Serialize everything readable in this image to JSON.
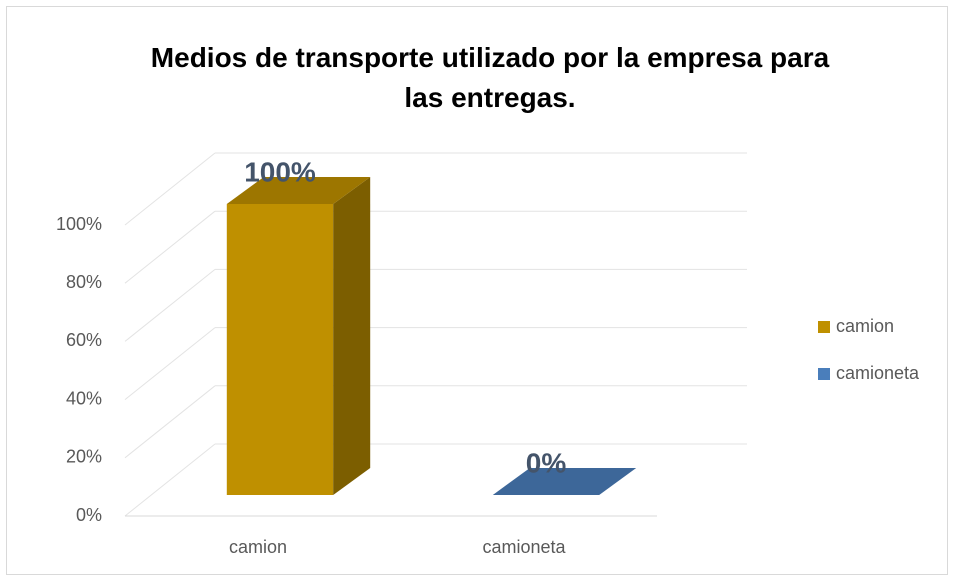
{
  "chart_data": {
    "type": "bar3d",
    "title": "Medios de transporte utilizado por la empresa para las entregas.",
    "categories": [
      "camion",
      "camioneta"
    ],
    "series": [
      {
        "name": "camion",
        "color": "#bf9000",
        "values": [
          100,
          null
        ],
        "value_labels": [
          "100%",
          null
        ]
      },
      {
        "name": "camioneta",
        "color": "#4a7ebb",
        "values": [
          null,
          0
        ],
        "value_labels": [
          null,
          "0%"
        ]
      }
    ],
    "ylim": [
      0,
      100
    ],
    "yticks": [
      {
        "value": 0,
        "label": "0%"
      },
      {
        "value": 20,
        "label": "20%"
      },
      {
        "value": 40,
        "label": "40%"
      },
      {
        "value": 60,
        "label": "60%"
      },
      {
        "value": 80,
        "label": "80%"
      },
      {
        "value": 100,
        "label": "100%"
      }
    ],
    "grid": true,
    "legend": "right"
  }
}
